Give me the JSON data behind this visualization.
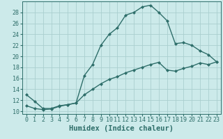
{
  "title": "",
  "xlabel": "Humidex (Indice chaleur)",
  "bg_color": "#cceaea",
  "line_color": "#2e6e6a",
  "grid_color": "#aacfcf",
  "ylim": [
    9.5,
    30.0
  ],
  "xlim": [
    -0.5,
    23.5
  ],
  "yticks": [
    10,
    12,
    14,
    16,
    18,
    20,
    22,
    24,
    26,
    28
  ],
  "xticks": [
    0,
    1,
    2,
    3,
    4,
    5,
    6,
    7,
    8,
    9,
    10,
    11,
    12,
    13,
    14,
    15,
    16,
    17,
    18,
    19,
    20,
    21,
    22,
    23
  ],
  "line1_x": [
    0,
    1,
    2,
    3,
    4,
    5,
    6,
    7,
    8,
    9,
    10,
    11,
    12,
    13,
    14,
    15,
    16,
    17,
    18,
    19,
    20,
    21,
    22,
    23
  ],
  "line1_y": [
    13.0,
    11.8,
    10.5,
    10.5,
    11.0,
    11.2,
    11.5,
    16.5,
    18.5,
    22.0,
    24.0,
    25.2,
    27.5,
    28.0,
    29.0,
    29.3,
    28.0,
    26.5,
    22.3,
    22.5,
    22.0,
    21.0,
    20.3,
    19.0
  ],
  "line2_x": [
    0,
    1,
    2,
    3,
    4,
    5,
    6,
    7,
    8,
    9,
    10,
    11,
    12,
    13,
    14,
    15,
    16,
    17,
    18,
    19,
    20,
    21,
    22,
    23
  ],
  "line2_y": [
    11.0,
    10.5,
    10.3,
    10.4,
    10.9,
    11.2,
    11.5,
    13.0,
    14.0,
    15.0,
    15.8,
    16.3,
    17.0,
    17.5,
    18.0,
    18.5,
    18.9,
    17.5,
    17.3,
    17.8,
    18.2,
    18.8,
    18.5,
    19.0
  ],
  "marker": "D",
  "markersize": 2.0,
  "linewidth": 1.0,
  "fontsize_label": 7.5,
  "fontsize_tick": 6.0
}
